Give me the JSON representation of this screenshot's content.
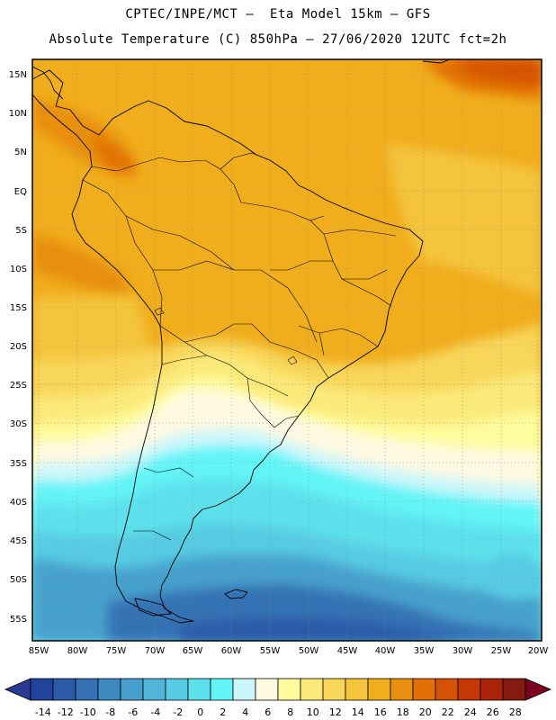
{
  "header": {
    "line1": "CPTEC/INPE/MCT –  Eta Model 15km – GFS",
    "line2": "Absolute Temperature (C) 850hPa – 27/06/2020 12UTC fct=2h"
  },
  "axes": {
    "lat_labels": [
      "15N",
      "10N",
      "5N",
      "EQ",
      "5S",
      "10S",
      "15S",
      "20S",
      "25S",
      "30S",
      "35S",
      "40S",
      "45S",
      "50S",
      "55S"
    ],
    "lon_labels": [
      "85W",
      "80W",
      "75W",
      "70W",
      "65W",
      "60W",
      "55W",
      "50W",
      "45W",
      "40W",
      "35W",
      "30W",
      "25W",
      "20W"
    ]
  },
  "colorbar": {
    "labels": [
      "-14",
      "-12",
      "-10",
      "-8",
      "-6",
      "-4",
      "-2",
      "0",
      "2",
      "4",
      "6",
      "8",
      "10",
      "12",
      "14",
      "16",
      "18",
      "20",
      "22",
      "24",
      "26",
      "28"
    ],
    "colors": [
      "#21449a",
      "#2b5ba8",
      "#3472b4",
      "#3d89c0",
      "#47a0cc",
      "#50b5d6",
      "#57cbe2",
      "#5de0ec",
      "#62f4f6",
      "#cbf6fa",
      "#fff9e2",
      "#fefc9c",
      "#fbe97a",
      "#f8d65a",
      "#f4c43c",
      "#f0ad1c",
      "#e88f0f",
      "#e27006",
      "#d55204",
      "#c43805",
      "#a92308",
      "#841a12"
    ],
    "left_arrow_color": "#2a3a90",
    "right_arrow_color": "#7a0020"
  }
}
